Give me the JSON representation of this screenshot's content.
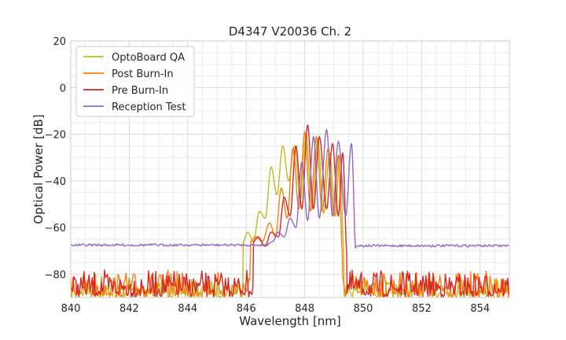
{
  "chart_data": {
    "type": "line",
    "title": "D4347 V20036 Ch. 2",
    "xlabel": "Wavelength [nm]",
    "ylabel": "Optical Power [dB]",
    "xlim": [
      840,
      855
    ],
    "ylim": [
      -90,
      20
    ],
    "xticks": [
      840,
      842,
      844,
      846,
      848,
      850,
      852,
      854
    ],
    "yticks": [
      20,
      0,
      -20,
      -40,
      -60,
      -80
    ],
    "grid": true,
    "legend_position": "top-left",
    "series": [
      {
        "name": "OptoBoard QA",
        "color": "#bcbd22",
        "noise_floor": [
          -82,
          -90
        ],
        "peaks": [
          {
            "x": 846.05,
            "y": -62
          },
          {
            "x": 846.45,
            "y": -53
          },
          {
            "x": 846.85,
            "y": -34
          },
          {
            "x": 847.25,
            "y": -25
          },
          {
            "x": 847.65,
            "y": -25
          },
          {
            "x": 848.05,
            "y": -20
          },
          {
            "x": 848.45,
            "y": -22
          },
          {
            "x": 848.85,
            "y": -28
          },
          {
            "x": 849.2,
            "y": -29
          }
        ],
        "dips": [
          {
            "x": 846.25,
            "y": -66
          },
          {
            "x": 846.65,
            "y": -56
          },
          {
            "x": 847.05,
            "y": -46
          },
          {
            "x": 847.45,
            "y": -40
          },
          {
            "x": 847.85,
            "y": -48
          },
          {
            "x": 848.25,
            "y": -52
          },
          {
            "x": 848.65,
            "y": -54
          },
          {
            "x": 849.05,
            "y": -55
          }
        ]
      },
      {
        "name": "Post Burn-In",
        "color": "#ff7f0e",
        "noise_floor": [
          -78,
          -90
        ],
        "peaks": [
          {
            "x": 846.3,
            "y": -64
          },
          {
            "x": 846.8,
            "y": -58
          },
          {
            "x": 847.2,
            "y": -43
          },
          {
            "x": 847.6,
            "y": -26
          },
          {
            "x": 848.0,
            "y": -19
          },
          {
            "x": 848.4,
            "y": -21
          },
          {
            "x": 848.8,
            "y": -26
          },
          {
            "x": 849.15,
            "y": -29
          }
        ],
        "dips": [
          {
            "x": 846.55,
            "y": -66
          },
          {
            "x": 847.0,
            "y": -64
          },
          {
            "x": 847.4,
            "y": -56
          },
          {
            "x": 847.8,
            "y": -52
          },
          {
            "x": 848.2,
            "y": -53
          },
          {
            "x": 848.6,
            "y": -53
          },
          {
            "x": 849.0,
            "y": -55
          }
        ]
      },
      {
        "name": "Pre Burn-In",
        "color": "#d62728",
        "noise_floor": [
          -78,
          -90
        ],
        "peaks": [
          {
            "x": 846.4,
            "y": -64
          },
          {
            "x": 846.85,
            "y": -62
          },
          {
            "x": 847.3,
            "y": -47
          },
          {
            "x": 847.7,
            "y": -25
          },
          {
            "x": 848.1,
            "y": -16
          },
          {
            "x": 848.5,
            "y": -21
          },
          {
            "x": 848.95,
            "y": -24
          },
          {
            "x": 849.3,
            "y": -28
          }
        ],
        "dips": [
          {
            "x": 846.65,
            "y": -68
          },
          {
            "x": 847.1,
            "y": -64
          },
          {
            "x": 847.5,
            "y": -55
          },
          {
            "x": 847.9,
            "y": -52
          },
          {
            "x": 848.3,
            "y": -52
          },
          {
            "x": 848.75,
            "y": -52
          },
          {
            "x": 849.15,
            "y": -55
          }
        ]
      },
      {
        "name": "Reception Test",
        "color": "#9467bd",
        "noise_floor": [
          -67,
          -68
        ],
        "peaks": [
          {
            "x": 847.1,
            "y": -62
          },
          {
            "x": 847.5,
            "y": -56
          },
          {
            "x": 847.9,
            "y": -32
          },
          {
            "x": 848.3,
            "y": -21
          },
          {
            "x": 848.75,
            "y": -18
          },
          {
            "x": 849.15,
            "y": -23
          },
          {
            "x": 849.6,
            "y": -24
          }
        ],
        "dips": [
          {
            "x": 846.9,
            "y": -66
          },
          {
            "x": 847.3,
            "y": -64
          },
          {
            "x": 847.7,
            "y": -60
          },
          {
            "x": 848.1,
            "y": -57
          },
          {
            "x": 848.5,
            "y": -56
          },
          {
            "x": 848.95,
            "y": -55
          },
          {
            "x": 849.4,
            "y": -55
          }
        ]
      }
    ]
  }
}
